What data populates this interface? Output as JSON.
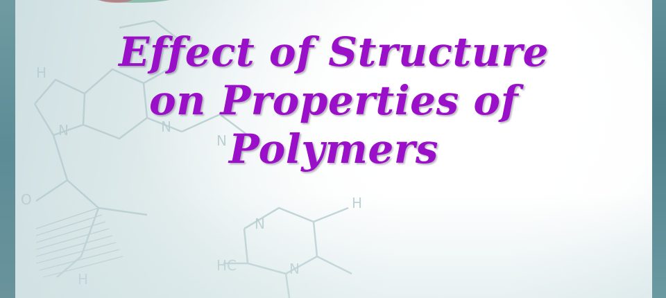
{
  "slide": {
    "title_lines": [
      "Effect of Structure",
      "on Properties of",
      "Polymers"
    ],
    "title_color": "#9a0fc8",
    "background_graphic": "faint chemical structure diagram",
    "molecule_labels": [
      "H",
      "N",
      "N",
      "N",
      "O",
      "N",
      "N",
      "HC",
      "H",
      "H"
    ]
  }
}
